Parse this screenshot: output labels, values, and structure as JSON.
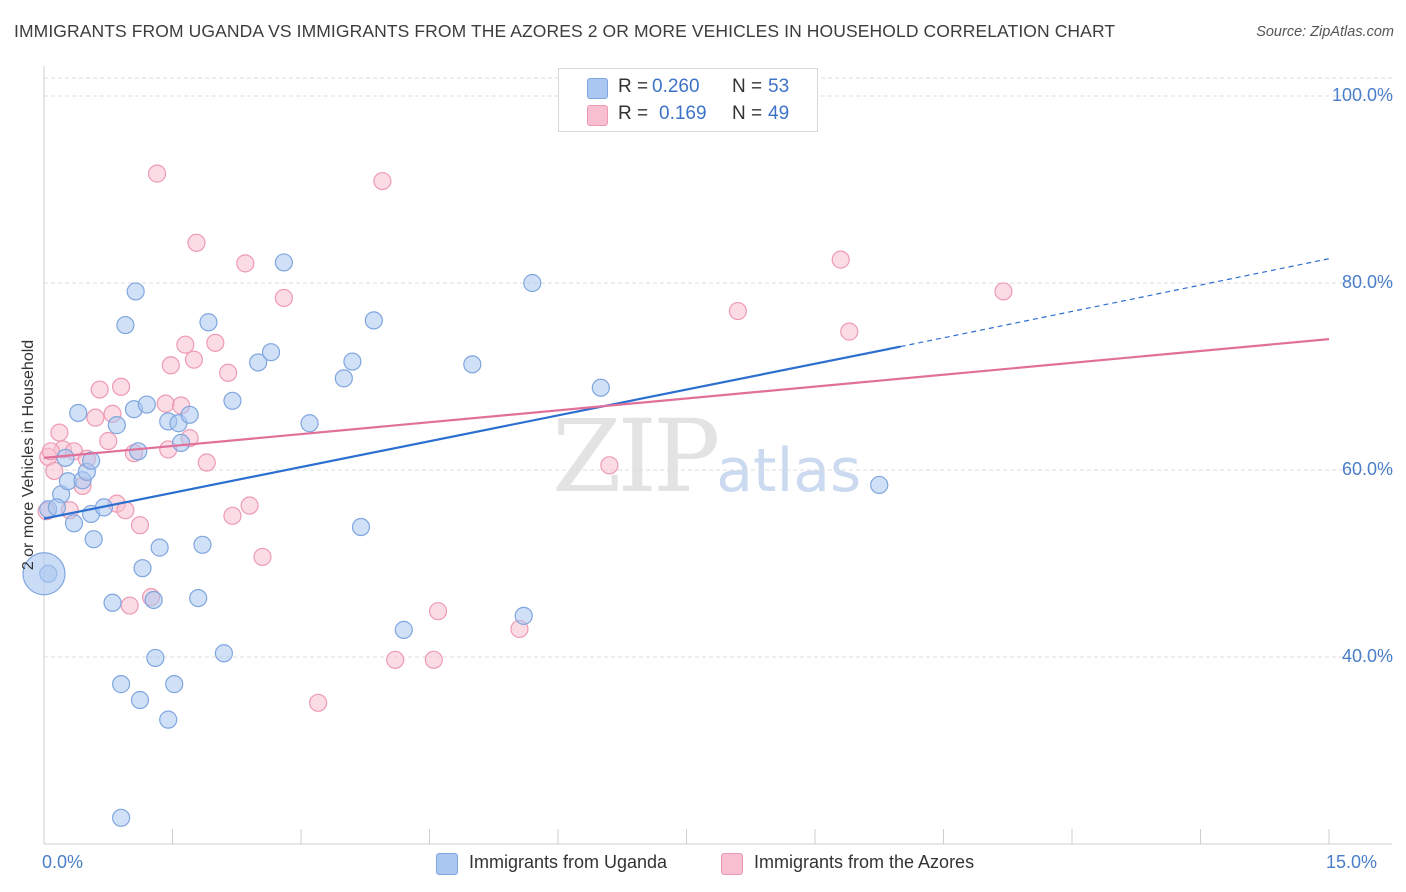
{
  "title": "IMMIGRANTS FROM UGANDA VS IMMIGRANTS FROM THE AZORES 2 OR MORE VEHICLES IN HOUSEHOLD CORRELATION CHART",
  "source": "Source: ZipAtlas.com",
  "watermark": {
    "zip": "ZIP",
    "atlas": "atlas"
  },
  "legend": {
    "r_label": "R =",
    "n_label": "N =",
    "uganda": {
      "r": "0.260",
      "n": "53"
    },
    "azores": {
      "r": "0.169",
      "n": "49"
    }
  },
  "colors": {
    "uganda_fill": "#a9c7f0",
    "uganda_stroke": "#7fa6de",
    "uganda_line": "#2c6fcf",
    "azores_fill": "#f8bfd0",
    "azores_stroke": "#ee9ab4",
    "azores_line": "#e0709a",
    "grid": "#dddddd",
    "tick_text": "#4a7ec9"
  },
  "chart_data": {
    "type": "scatter",
    "title": "IMMIGRANTS FROM UGANDA VS IMMIGRANTS FROM THE AZORES 2 OR MORE VEHICLES IN HOUSEHOLD CORRELATION CHART",
    "xlabel": "",
    "ylabel": "2 or more Vehicles in Household",
    "xlim": [
      0,
      15
    ],
    "ylim": [
      20,
      100
    ],
    "x_tick_labels": [
      "0.0%",
      "15.0%"
    ],
    "y_ticks": [
      40,
      60,
      80,
      100
    ],
    "y_tick_labels": [
      "40.0%",
      "60.0%",
      "80.0%",
      "100.0%"
    ],
    "series": [
      {
        "name": "Immigrants from Uganda",
        "points": [
          [
            0.05,
            48.9
          ],
          [
            0.05,
            55.8
          ],
          [
            0.2,
            57.4
          ],
          [
            0.28,
            58.8
          ],
          [
            0.35,
            54.3
          ],
          [
            0.45,
            58.9
          ],
          [
            0.25,
            61.3
          ],
          [
            0.4,
            66.1
          ],
          [
            0.5,
            59.8
          ],
          [
            0.55,
            61.0
          ],
          [
            0.55,
            55.3
          ],
          [
            0.58,
            52.6
          ],
          [
            0.7,
            56.0
          ],
          [
            0.85,
            64.8
          ],
          [
            0.8,
            45.8
          ],
          [
            0.9,
            37.1
          ],
          [
            0.95,
            75.5
          ],
          [
            1.05,
            66.5
          ],
          [
            1.07,
            79.1
          ],
          [
            1.12,
            35.4
          ],
          [
            1.15,
            49.5
          ],
          [
            1.2,
            67.0
          ],
          [
            1.28,
            46.1
          ],
          [
            1.3,
            39.9
          ],
          [
            1.35,
            51.7
          ],
          [
            1.45,
            33.3
          ],
          [
            1.45,
            65.2
          ],
          [
            1.52,
            37.1
          ],
          [
            1.57,
            65.0
          ],
          [
            1.6,
            62.9
          ],
          [
            1.7,
            65.9
          ],
          [
            1.8,
            46.3
          ],
          [
            1.85,
            52.0
          ],
          [
            1.92,
            75.8
          ],
          [
            2.1,
            40.4
          ],
          [
            2.2,
            67.4
          ],
          [
            2.5,
            71.5
          ],
          [
            2.65,
            72.6
          ],
          [
            2.8,
            82.2
          ],
          [
            3.1,
            65.0
          ],
          [
            3.5,
            69.8
          ],
          [
            3.6,
            71.6
          ],
          [
            3.7,
            53.9
          ],
          [
            3.85,
            76.0
          ],
          [
            4.2,
            42.9
          ],
          [
            5.0,
            71.3
          ],
          [
            5.6,
            44.4
          ],
          [
            5.7,
            80.0
          ],
          [
            6.5,
            68.8
          ],
          [
            9.75,
            58.4
          ],
          [
            0.9,
            22.8
          ],
          [
            0.15,
            56.0
          ],
          [
            1.1,
            62.0
          ]
        ]
      },
      {
        "name": "Immigrants from the Azores",
        "points": [
          [
            0.03,
            55.6
          ],
          [
            0.05,
            61.4
          ],
          [
            0.12,
            59.9
          ],
          [
            0.18,
            64.0
          ],
          [
            0.22,
            62.2
          ],
          [
            0.3,
            55.7
          ],
          [
            0.35,
            62.0
          ],
          [
            0.45,
            58.3
          ],
          [
            0.5,
            61.2
          ],
          [
            0.6,
            65.6
          ],
          [
            0.65,
            68.6
          ],
          [
            0.75,
            63.1
          ],
          [
            0.8,
            66.0
          ],
          [
            0.85,
            56.4
          ],
          [
            0.9,
            68.9
          ],
          [
            0.95,
            55.7
          ],
          [
            1.0,
            45.5
          ],
          [
            1.05,
            61.8
          ],
          [
            1.12,
            54.1
          ],
          [
            1.25,
            46.4
          ],
          [
            1.32,
            91.7
          ],
          [
            1.42,
            67.1
          ],
          [
            1.45,
            62.2
          ],
          [
            1.48,
            71.2
          ],
          [
            1.6,
            66.9
          ],
          [
            1.65,
            73.4
          ],
          [
            1.7,
            63.4
          ],
          [
            1.75,
            71.8
          ],
          [
            1.78,
            84.3
          ],
          [
            1.9,
            60.8
          ],
          [
            2.0,
            73.6
          ],
          [
            2.15,
            70.4
          ],
          [
            2.2,
            55.1
          ],
          [
            2.35,
            82.1
          ],
          [
            2.4,
            56.2
          ],
          [
            2.55,
            50.7
          ],
          [
            2.8,
            78.4
          ],
          [
            3.2,
            35.1
          ],
          [
            3.95,
            90.9
          ],
          [
            4.1,
            39.7
          ],
          [
            4.55,
            39.7
          ],
          [
            4.6,
            44.9
          ],
          [
            5.55,
            43.0
          ],
          [
            6.6,
            60.5
          ],
          [
            8.1,
            77.0
          ],
          [
            9.3,
            82.5
          ],
          [
            9.4,
            74.8
          ],
          [
            11.2,
            79.1
          ],
          [
            0.08,
            62.0
          ]
        ]
      }
    ],
    "trendlines": [
      {
        "series": "Immigrants from Uganda",
        "x0": 0.0,
        "y0": 54.8,
        "x1": 10.0,
        "y1": 73.2,
        "dashed_to_x": 15.0,
        "dashed_to_y": 82.6
      },
      {
        "series": "Immigrants from the Azores",
        "x0": 0.0,
        "y0": 61.3,
        "x1": 15.0,
        "y1": 74.0
      }
    ],
    "big_point": {
      "series": "Immigrants from Uganda",
      "x": 0.0,
      "y": 48.9
    },
    "legend_position": "top-center",
    "grid": true
  }
}
